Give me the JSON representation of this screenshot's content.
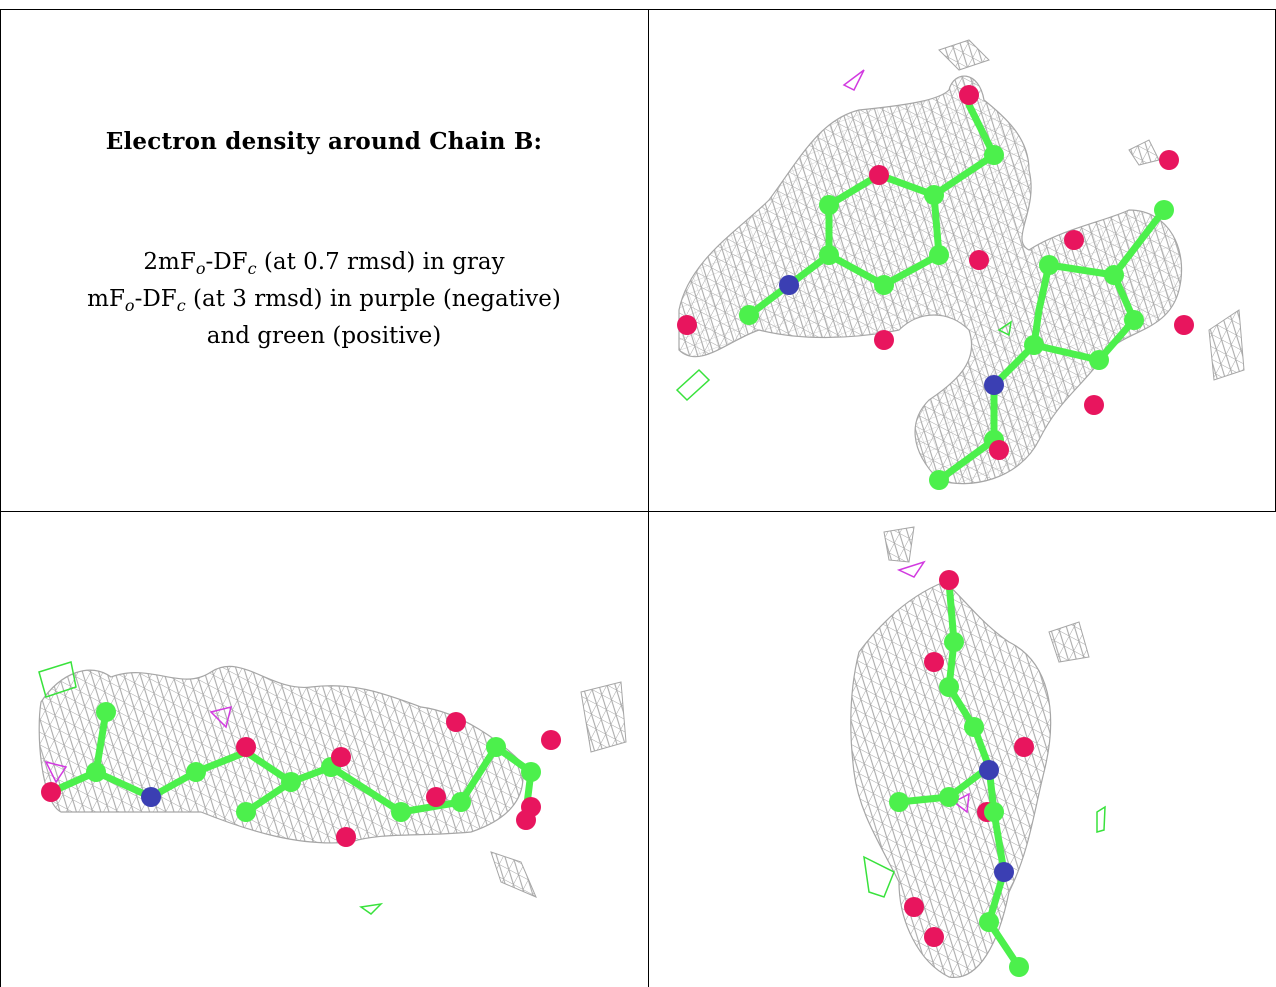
{
  "caption": {
    "title": "Electron density around Chain B:",
    "line1": {
      "a": "2mF",
      "b": "o",
      "c": "-DF",
      "d": "c",
      "e": " (at 0.7 rmsd) in gray"
    },
    "line2": {
      "a": "mF",
      "b": "o",
      "c": "-DF",
      "d": "c",
      "e": " (at 3 rmsd) in purple (negative)"
    },
    "line3": "and green (positive)"
  },
  "colors": {
    "mesh_2fofc": "#a6a6a6",
    "mesh_negative": "#d23be0",
    "mesh_positive": "#39e23c",
    "carbon": "#4cf04c",
    "oxygen": "#e8155e",
    "nitrogen": "#3b3fb3"
  },
  "panels": [
    "view-1",
    "view-2",
    "view-3"
  ]
}
